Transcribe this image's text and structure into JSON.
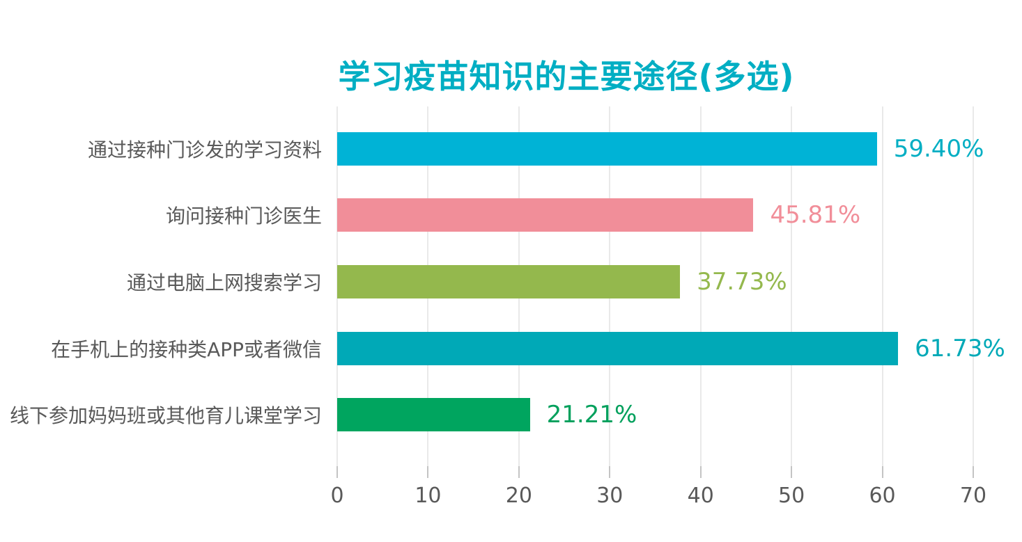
{
  "chart_data": {
    "type": "bar",
    "orientation": "horizontal",
    "title": "学习疫苗知识的主要途径(多选)",
    "categories": [
      "通过接种门诊发的学习资料",
      "询问接种门诊医生",
      "通过电脑上网搜索学习",
      "在手机上的接种类APP或者微信",
      "线下参加妈妈班或其他育儿课堂学习"
    ],
    "values": [
      59.4,
      45.81,
      37.73,
      61.73,
      21.21
    ],
    "value_labels": [
      "59.40%",
      "45.81%",
      "37.73%",
      "61.73%",
      "21.21%"
    ],
    "bar_colors": [
      "#00B3D6",
      "#F18E99",
      "#94B84D",
      "#00A9B7",
      "#00A55F"
    ],
    "value_label_colors": [
      "#00AEC3",
      "#F18E99",
      "#94B84D",
      "#00A9B7",
      "#00A05C"
    ],
    "xlabel": "",
    "ylabel": "",
    "xlim": [
      0,
      70
    ],
    "x_ticks": [
      0,
      10,
      20,
      30,
      40,
      50,
      60,
      70
    ],
    "grid": true,
    "legend": false
  },
  "colors": {
    "title": "#00AEC3",
    "category_text": "#595959",
    "axis_text": "#595959",
    "gridline": "#E9E9E9",
    "tick": "#C4C4C4",
    "background": "#FFFFFF"
  }
}
